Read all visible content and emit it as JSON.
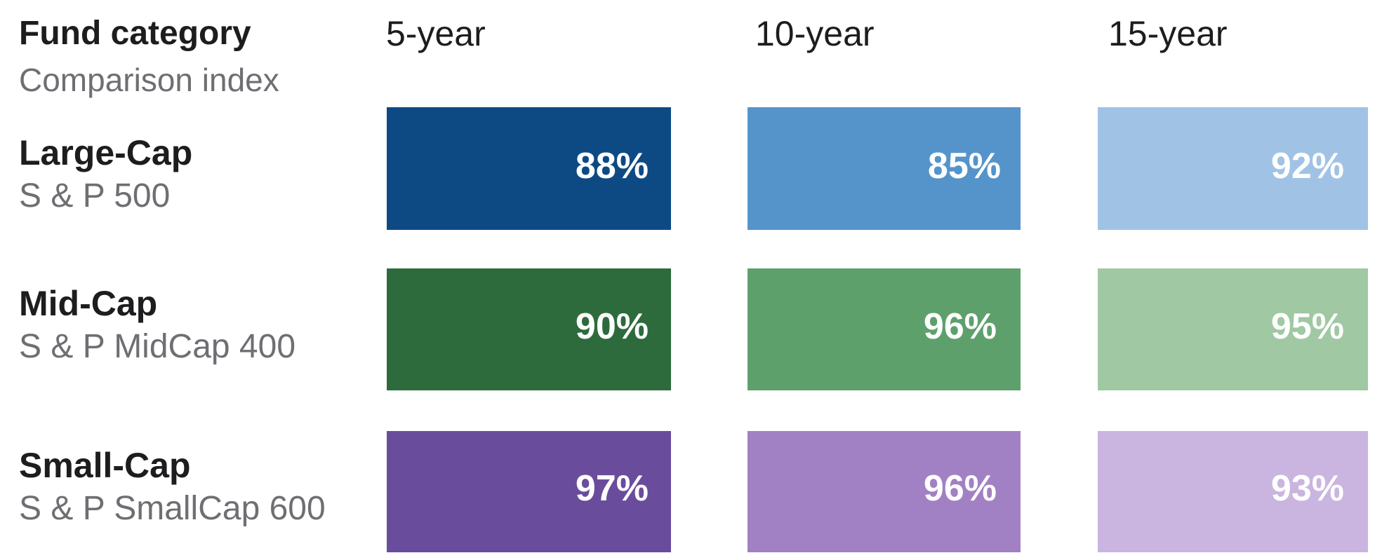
{
  "header": {
    "title": "Fund category",
    "subtitle": "Comparison index"
  },
  "columns": [
    "5-year",
    "10-year",
    "15-year"
  ],
  "rows": [
    {
      "category": "Large-Cap",
      "index": "S & P 500",
      "values": [
        "88%",
        "85%",
        "92%"
      ]
    },
    {
      "category": "Mid-Cap",
      "index": "S & P MidCap 400",
      "values": [
        "90%",
        "96%",
        "95%"
      ]
    },
    {
      "category": "Small-Cap",
      "index": "S & P SmallCap 600",
      "values": [
        "97%",
        "96%",
        "93%"
      ]
    }
  ],
  "colors": {
    "large_cap": [
      "#0d4a84",
      "#5594ca",
      "#a0c3e5"
    ],
    "mid_cap": [
      "#2d6b3d",
      "#5ea06c",
      "#a0c8a3"
    ],
    "small_cap": [
      "#6a4c9c",
      "#a181c3",
      "#c9b5df"
    ]
  },
  "chart_data": {
    "type": "table",
    "title": "",
    "row_header": "Fund category",
    "row_subheader": "Comparison index",
    "categories": [
      "Large-Cap",
      "Mid-Cap",
      "Small-Cap"
    ],
    "indices": [
      "S & P 500",
      "S & P MidCap 400",
      "S & P SmallCap 600"
    ],
    "columns": [
      "5-year",
      "10-year",
      "15-year"
    ],
    "series": [
      {
        "name": "5-year",
        "values": [
          88,
          90,
          97
        ]
      },
      {
        "name": "10-year",
        "values": [
          85,
          96,
          96
        ]
      },
      {
        "name": "15-year",
        "values": [
          92,
          95,
          93
        ]
      }
    ],
    "unit": "%"
  }
}
